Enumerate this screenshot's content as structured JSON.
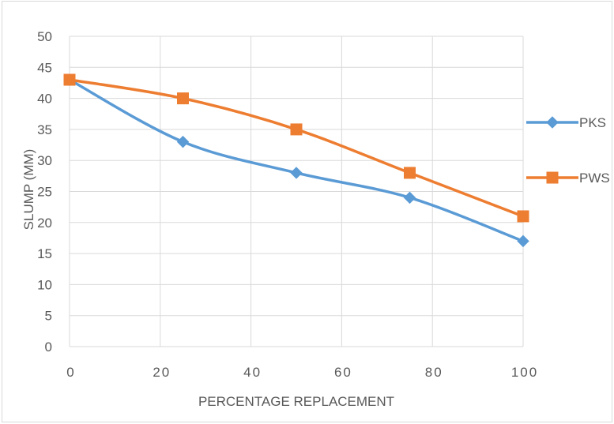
{
  "chart_data": {
    "type": "line",
    "title": "",
    "xlabel": "PERCENTAGE REPLACEMENT",
    "ylabel": "SLUMP (MM)",
    "x": [
      0,
      25,
      50,
      75,
      100
    ],
    "xlim": [
      0,
      100
    ],
    "ylim": [
      0,
      50
    ],
    "xticks": [
      "0",
      "20",
      "40",
      "60",
      "80",
      "100"
    ],
    "yticks": [
      "0",
      "5",
      "10",
      "15",
      "20",
      "25",
      "30",
      "35",
      "40",
      "45",
      "50"
    ],
    "grid": "both",
    "legend_position": "right",
    "series": [
      {
        "name": "PKS",
        "values": [
          43,
          33,
          28,
          24,
          17
        ],
        "color": "#5b9bd5",
        "marker": "diamond"
      },
      {
        "name": "PWS",
        "values": [
          43,
          40,
          35,
          28,
          21
        ],
        "color": "#ed7d31",
        "marker": "square"
      }
    ]
  }
}
